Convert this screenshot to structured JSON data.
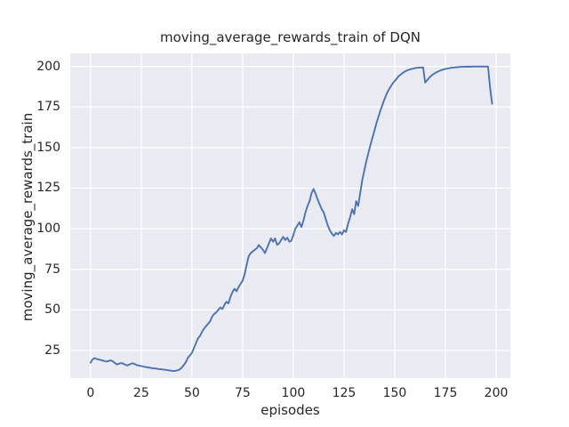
{
  "chart_data": {
    "type": "line",
    "title": "moving_average_rewards_train of DQN",
    "xlabel": "episodes",
    "ylabel": "moving_average_rewards_train",
    "x_ticks": [
      0,
      25,
      50,
      75,
      100,
      125,
      150,
      175,
      200
    ],
    "y_ticks": [
      25,
      50,
      75,
      100,
      125,
      150,
      175,
      200
    ],
    "xlim": [
      -10,
      207
    ],
    "ylim": [
      8,
      208
    ],
    "grid": true,
    "legend_position": "none",
    "series": [
      {
        "name": "moving_average_rewards_train",
        "x_start": 0,
        "x_step": 1,
        "values": [
          17.5,
          19.5,
          20.3,
          19.8,
          19.4,
          19.2,
          18.8,
          18.4,
          18.2,
          18.6,
          18.9,
          18.3,
          17.3,
          16.4,
          16.8,
          17.2,
          17.0,
          16.3,
          15.8,
          16.2,
          16.9,
          17.1,
          16.5,
          15.9,
          15.7,
          15.4,
          15.1,
          14.9,
          14.6,
          14.4,
          14.2,
          14.0,
          13.9,
          13.7,
          13.5,
          13.4,
          13.2,
          13.1,
          12.9,
          12.7,
          12.5,
          12.4,
          12.5,
          12.8,
          13.3,
          14.5,
          16.0,
          17.8,
          20.5,
          22.0,
          23.5,
          26.5,
          29.5,
          32.5,
          34.0,
          36.5,
          38.5,
          40.0,
          41.5,
          43.0,
          46.0,
          47.5,
          48.5,
          50.0,
          51.5,
          50.5,
          53.0,
          55.0,
          54.0,
          58.0,
          61.0,
          63.0,
          61.5,
          64.0,
          66.0,
          68.0,
          72.0,
          78.0,
          83.0,
          85.0,
          86.0,
          87.0,
          88.0,
          90.0,
          88.5,
          87.0,
          85.0,
          88.0,
          91.0,
          94.0,
          92.0,
          94.0,
          90.0,
          91.0,
          93.0,
          95.0,
          93.0,
          94.5,
          92.0,
          92.5,
          96.0,
          100.0,
          102.0,
          104.0,
          101.0,
          105.0,
          110.0,
          114.0,
          117.0,
          122.0,
          124.5,
          121.5,
          118.0,
          115.0,
          112.0,
          110.0,
          106.0,
          102.0,
          99.0,
          97.0,
          95.5,
          97.5,
          96.5,
          98.0,
          96.5,
          99.0,
          98.0,
          103.0,
          107.0,
          112.0,
          109.0,
          117.0,
          114.0,
          122.0,
          130.0,
          136.0,
          141.5,
          146.5,
          151.5,
          156.0,
          160.5,
          165.0,
          169.0,
          173.0,
          176.5,
          180.0,
          183.0,
          185.5,
          187.5,
          189.5,
          191.0,
          192.5,
          194.0,
          195.0,
          196.0,
          196.8,
          197.4,
          197.9,
          198.3,
          198.6,
          198.9,
          199.1,
          199.2,
          199.3,
          199.4,
          190.0,
          191.5,
          193.0,
          194.2,
          195.2,
          196.0,
          196.6,
          197.2,
          197.7,
          198.1,
          198.4,
          198.7,
          198.9,
          199.1,
          199.3,
          199.4,
          199.5,
          199.6,
          199.7,
          199.7,
          199.8,
          199.8,
          199.8,
          199.9,
          199.9,
          199.9,
          199.9,
          199.9,
          199.9,
          199.9,
          199.9,
          199.9,
          187.0,
          177.0
        ]
      }
    ]
  },
  "colors": {
    "line": "#4c72b0",
    "axes_background": "#eaeaf2",
    "grid": "#ffffff",
    "text": "#262626",
    "figure_background": "#ffffff"
  }
}
